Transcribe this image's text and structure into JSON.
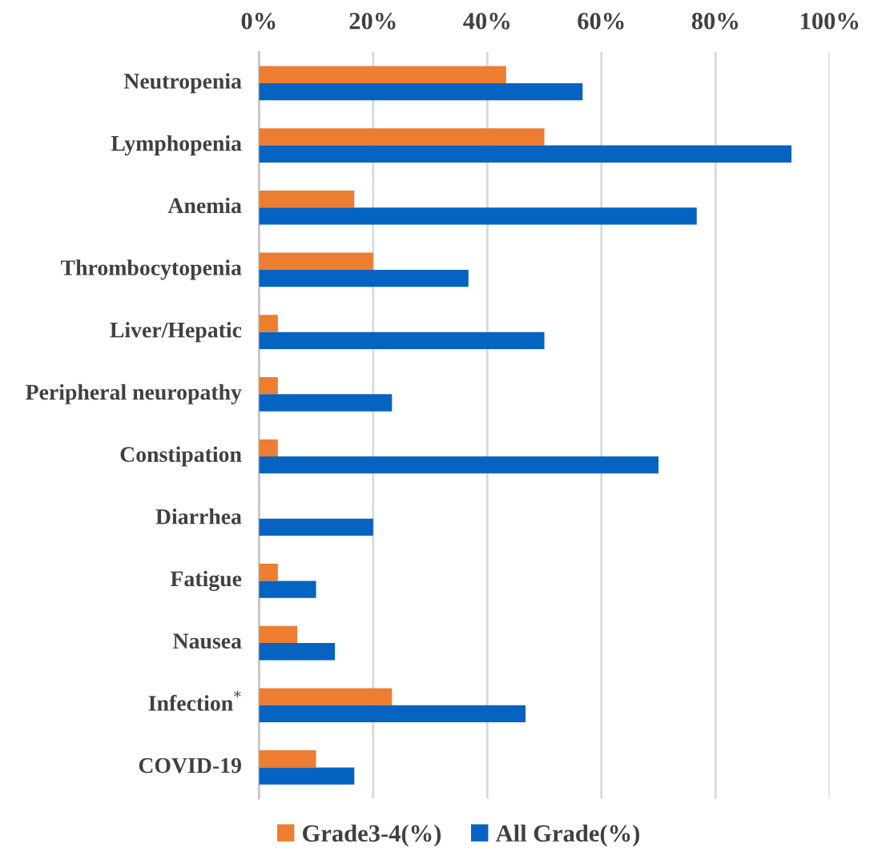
{
  "chart_data": {
    "type": "bar",
    "orientation": "horizontal",
    "categories": [
      "Neutropenia",
      "Lymphopenia",
      "Anemia",
      "Thrombocytopenia",
      "Liver/Hepatic",
      "Peripheral neuropathy",
      "Constipation",
      "Diarrhea",
      "Fatigue",
      "Nausea",
      "Infection$^{*}$",
      "COVID-19"
    ],
    "series": [
      {
        "name": "Grade3-4(%)",
        "color": "#ed7d31",
        "values": [
          43.3,
          50.0,
          16.7,
          20.0,
          3.3,
          3.3,
          3.3,
          0,
          3.3,
          6.7,
          23.3,
          10.0
        ]
      },
      {
        "name": "All Grade(%)",
        "color": "#0563c1",
        "values": [
          56.7,
          93.3,
          76.7,
          36.7,
          50.0,
          23.3,
          70.0,
          20.0,
          10.0,
          13.3,
          46.7,
          16.7
        ]
      }
    ],
    "xlim": [
      0,
      100
    ],
    "xticks": [
      {
        "value": 0,
        "label": "0%"
      },
      {
        "value": 20,
        "label": "20%"
      },
      {
        "value": 40,
        "label": "40%"
      },
      {
        "value": 60,
        "label": "60%"
      },
      {
        "value": 80,
        "label": "80%"
      },
      {
        "value": 100,
        "label": "100%"
      }
    ],
    "grid": "x",
    "legend": "bottom"
  }
}
